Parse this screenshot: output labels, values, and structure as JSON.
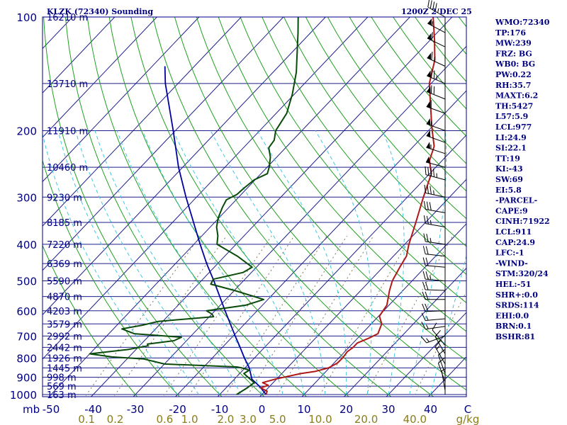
{
  "header": {
    "station": "KLZK (72340) Sounding",
    "time": "1200Z  2 DEC 25"
  },
  "indices": [
    "WMO:72340",
    "TP:176",
    "MW:239",
    "FRZ: BG",
    "WB0: BG",
    "PW:0.22",
    "RH:35.7",
    "MAXT:6.2",
    "TH:5427",
    "L57:5.9",
    "LCL:977",
    "LI:24.9",
    "SI:22.1",
    "TT:19",
    "KI:-43",
    "SW:69",
    "EI:5.8",
    "-PARCEL-",
    "CAPE:9",
    "CINH:71922",
    "LCL:911",
    "CAP:24.9",
    "LFC:-1",
    "-WIND-",
    "STM:320/24",
    "HEL:-51",
    "SHR+:0.0",
    "SRDS:114",
    "EHI:0.0",
    "BRN:0.1",
    "BSHR:81"
  ],
  "colors": {
    "axes": "#000080",
    "isotherm": "#1e1e8c",
    "dry_adiabat": "#20a020",
    "moist_adiabat": "#40c8e0",
    "mixing_ratio": "#807a5a",
    "temperature": "#b01818",
    "dewpoint": "#0a4a0a",
    "parcel": "#0000a0",
    "wind": "#000000"
  },
  "chart_data": {
    "type": "line",
    "title": "KLZK (72340) Sounding",
    "xlabel": "C",
    "ylabel": "mb",
    "x_ticks": [
      "-50",
      "-40",
      "-30",
      "-20",
      "-10",
      "0",
      "10",
      "20",
      "30",
      "40"
    ],
    "x_unit_label": "C",
    "pressure_ticks": [
      "100",
      "200",
      "300",
      "400",
      "500",
      "600",
      "700",
      "800",
      "900",
      "1000"
    ],
    "pressure_unit_label": "mb",
    "height_labels": [
      {
        "p": 100,
        "label": "16210 m"
      },
      {
        "p": 150,
        "label": "13710 m"
      },
      {
        "p": 200,
        "label": "11910 m"
      },
      {
        "p": 250,
        "label": "10460 m"
      },
      {
        "p": 300,
        "label": "9230 m"
      },
      {
        "p": 350,
        "label": "8185 m"
      },
      {
        "p": 400,
        "label": "7220 m"
      },
      {
        "p": 450,
        "label": "6369 m"
      },
      {
        "p": 500,
        "label": "5590 m"
      },
      {
        "p": 550,
        "label": "4870 m"
      },
      {
        "p": 600,
        "label": "4203 m"
      },
      {
        "p": 650,
        "label": "3579 m"
      },
      {
        "p": 700,
        "label": "2992 m"
      },
      {
        "p": 750,
        "label": "2442 m"
      },
      {
        "p": 800,
        "label": "1926 m"
      },
      {
        "p": 850,
        "label": "1445 m"
      },
      {
        "p": 900,
        "label": "998 m"
      },
      {
        "p": 950,
        "label": "569 m"
      },
      {
        "p": 1000,
        "label": "163 m"
      }
    ],
    "mixing_ratio_labels": [
      "0.1",
      "0.2",
      "0.6",
      "1.0",
      "2.0",
      "3.0",
      "5.0",
      "10.0",
      "20.0",
      "40.0"
    ],
    "mixing_ratio_unit": "g/kg",
    "temperature": [
      [
        1000,
        1.0
      ],
      [
        980,
        0.5
      ],
      [
        960,
        -1.8
      ],
      [
        945,
        -0.6
      ],
      [
        930,
        -2.5
      ],
      [
        910,
        -0.3
      ],
      [
        880,
        4.5
      ],
      [
        868,
        7.5
      ],
      [
        850,
        9.8
      ],
      [
        825,
        10.8
      ],
      [
        800,
        10.9
      ],
      [
        770,
        10.6
      ],
      [
        750,
        11.0
      ],
      [
        730,
        11.0
      ],
      [
        710,
        12.6
      ],
      [
        690,
        13.8
      ],
      [
        650,
        12.5
      ],
      [
        620,
        10.2
      ],
      [
        580,
        9.5
      ],
      [
        530,
        6.8
      ],
      [
        500,
        5.3
      ],
      [
        460,
        4.0
      ],
      [
        430,
        3.1
      ],
      [
        400,
        1.0
      ],
      [
        350,
        -2.3
      ],
      [
        300,
        -6.2
      ],
      [
        260,
        -9.6
      ],
      [
        240,
        -13.0
      ],
      [
        220,
        -15.1
      ],
      [
        200,
        -19.1
      ],
      [
        185,
        -22.2
      ],
      [
        170,
        -25.5
      ],
      [
        150,
        -30.4
      ],
      [
        130,
        -34.4
      ],
      [
        115,
        -39.0
      ],
      [
        100,
        -44.5
      ]
    ],
    "dewpoint": [
      [
        1000,
        -6.0
      ],
      [
        960,
        -5.0
      ],
      [
        930,
        -4.5
      ],
      [
        880,
        -9.0
      ],
      [
        862,
        -8.5
      ],
      [
        849,
        -11.0
      ],
      [
        845,
        -12.2
      ],
      [
        830,
        -30.0
      ],
      [
        805,
        -36.0
      ],
      [
        795,
        -44.0
      ],
      [
        780,
        -50.0
      ],
      [
        760,
        -42.0
      ],
      [
        743,
        -38.0
      ],
      [
        735,
        -38.5
      ],
      [
        720,
        -33.0
      ],
      [
        705,
        -32.0
      ],
      [
        690,
        -44.0
      ],
      [
        670,
        -48.0
      ],
      [
        655,
        -44.0
      ],
      [
        640,
        -41.0
      ],
      [
        622,
        -29.0
      ],
      [
        612,
        -30.0
      ],
      [
        600,
        -32.0
      ],
      [
        580,
        -24.0
      ],
      [
        560,
        -21.0
      ],
      [
        530,
        -30.0
      ],
      [
        510,
        -37.0
      ],
      [
        495,
        -37.5
      ],
      [
        475,
        -32.0
      ],
      [
        460,
        -31.0
      ],
      [
        430,
        -37.0
      ],
      [
        400,
        -44.5
      ],
      [
        380,
        -46.2
      ],
      [
        360,
        -48.5
      ],
      [
        340,
        -50.2
      ],
      [
        320,
        -51.5
      ],
      [
        305,
        -52.3
      ],
      [
        295,
        -51.0
      ],
      [
        285,
        -50.8
      ],
      [
        270,
        -50.2
      ],
      [
        260,
        -48.5
      ],
      [
        250,
        -49.5
      ],
      [
        235,
        -51.5
      ],
      [
        222,
        -54.0
      ],
      [
        212,
        -54.4
      ],
      [
        200,
        -56.2
      ],
      [
        180,
        -57.5
      ],
      [
        160,
        -60.5
      ],
      [
        140,
        -64.5
      ],
      [
        125,
        -68.5
      ],
      [
        110,
        -73.0
      ],
      [
        100,
        -76.5
      ]
    ],
    "parcel": [
      [
        1000,
        1.0
      ],
      [
        950,
        -2.5
      ],
      [
        911,
        -5.8
      ],
      [
        880,
        -7.4
      ],
      [
        850,
        -9.0
      ],
      [
        800,
        -12.4
      ],
      [
        750,
        -15.8
      ],
      [
        700,
        -19.5
      ],
      [
        650,
        -23.4
      ],
      [
        600,
        -27.6
      ],
      [
        550,
        -32.1
      ],
      [
        500,
        -37.0
      ],
      [
        450,
        -42.6
      ],
      [
        400,
        -48.5
      ],
      [
        350,
        -55.0
      ],
      [
        300,
        -62.5
      ],
      [
        250,
        -71.0
      ],
      [
        200,
        -80.5
      ],
      [
        150,
        -93.0
      ],
      [
        135,
        -97.0
      ]
    ],
    "wind_barbs": [
      {
        "p": 100,
        "dir": 300,
        "spd": 45
      },
      {
        "p": 110,
        "dir": 298,
        "spd": 55
      },
      {
        "p": 120,
        "dir": 296,
        "spd": 60
      },
      {
        "p": 135,
        "dir": 295,
        "spd": 65
      },
      {
        "p": 150,
        "dir": 293,
        "spd": 75
      },
      {
        "p": 165,
        "dir": 292,
        "spd": 70
      },
      {
        "p": 180,
        "dir": 290,
        "spd": 60
      },
      {
        "p": 200,
        "dir": 290,
        "spd": 55
      },
      {
        "p": 215,
        "dir": 290,
        "spd": 50
      },
      {
        "p": 230,
        "dir": 288,
        "spd": 55
      },
      {
        "p": 250,
        "dir": 285,
        "spd": 50
      },
      {
        "p": 270,
        "dir": 285,
        "spd": 45
      },
      {
        "p": 300,
        "dir": 282,
        "spd": 35
      },
      {
        "p": 330,
        "dir": 280,
        "spd": 30
      },
      {
        "p": 360,
        "dir": 280,
        "spd": 25
      },
      {
        "p": 400,
        "dir": 278,
        "spd": 25
      },
      {
        "p": 430,
        "dir": 276,
        "spd": 20
      },
      {
        "p": 460,
        "dir": 275,
        "spd": 20
      },
      {
        "p": 500,
        "dir": 275,
        "spd": 25
      },
      {
        "p": 530,
        "dir": 272,
        "spd": 20
      },
      {
        "p": 560,
        "dir": 270,
        "spd": 20
      },
      {
        "p": 600,
        "dir": 268,
        "spd": 20
      },
      {
        "p": 630,
        "dir": 265,
        "spd": 15
      },
      {
        "p": 660,
        "dir": 262,
        "spd": 15
      },
      {
        "p": 700,
        "dir": 250,
        "spd": 15
      },
      {
        "p": 740,
        "dir": 320,
        "spd": 10
      },
      {
        "p": 780,
        "dir": 330,
        "spd": 10
      },
      {
        "p": 830,
        "dir": 330,
        "spd": 15
      },
      {
        "p": 880,
        "dir": 340,
        "spd": 10
      },
      {
        "p": 925,
        "dir": 340,
        "spd": 10
      },
      {
        "p": 975,
        "dir": 350,
        "spd": 5
      }
    ]
  }
}
